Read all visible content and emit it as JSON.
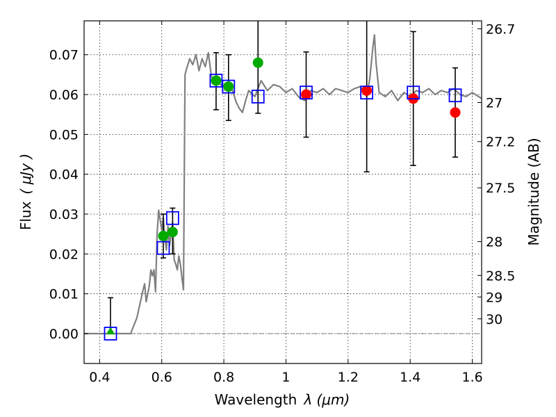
{
  "chart_data": {
    "type": "scatter",
    "xlabel_text": "Wavelength",
    "xlabel_math": "λ (μm)",
    "ylabel_text": "Flux",
    "ylabel_math": "( μJy )",
    "y2label": "Magnitude (AB)",
    "xlim": [
      0.35,
      1.63
    ],
    "ylim": [
      -0.0075,
      0.0785
    ],
    "grid": true,
    "x_ticks": [
      0.4,
      0.6,
      0.8,
      1.0,
      1.2,
      1.4,
      1.6
    ],
    "x_tick_labels": [
      "0.4",
      "0.6",
      "0.8",
      "1",
      "1.2",
      "1.4",
      "1.6"
    ],
    "y_ticks": [
      0.0,
      0.01,
      0.02,
      0.03,
      0.04,
      0.05,
      0.06,
      0.07
    ],
    "y_tick_labels": [
      "0.00",
      "0.01",
      "0.02",
      "0.03",
      "0.04",
      "0.05",
      "0.06",
      "0.07"
    ],
    "y2_ticks": [
      {
        "label": "26.7",
        "flux": 0.0765
      },
      {
        "label": "27",
        "flux": 0.058
      },
      {
        "label": "27.2",
        "flux": 0.0482
      },
      {
        "label": "27.5",
        "flux": 0.0366
      },
      {
        "label": "28",
        "flux": 0.0231
      },
      {
        "label": "28.5",
        "flux": 0.0146
      },
      {
        "label": "29",
        "flux": 0.0092
      },
      {
        "label": "30",
        "flux": 0.0037
      }
    ],
    "zero_line": 0.0,
    "colors": {
      "model": "#808080",
      "green": "#00aa00",
      "red": "#ff0000",
      "box": "#0000ff",
      "error": "#000000"
    },
    "model_spectrum": {
      "x": [
        0.35,
        0.5,
        0.52,
        0.54,
        0.545,
        0.55,
        0.56,
        0.565,
        0.57,
        0.575,
        0.58,
        0.585,
        0.59,
        0.595,
        0.6,
        0.605,
        0.61,
        0.615,
        0.62,
        0.625,
        0.63,
        0.635,
        0.64,
        0.645,
        0.65,
        0.655,
        0.66,
        0.665,
        0.67,
        0.675,
        0.68,
        0.69,
        0.7,
        0.71,
        0.72,
        0.73,
        0.74,
        0.75,
        0.76,
        0.78,
        0.8,
        0.82,
        0.84,
        0.85,
        0.86,
        0.87,
        0.88,
        0.9,
        0.92,
        0.94,
        0.96,
        0.98,
        1.0,
        1.02,
        1.04,
        1.06,
        1.08,
        1.1,
        1.12,
        1.14,
        1.16,
        1.18,
        1.2,
        1.22,
        1.24,
        1.26,
        1.27,
        1.28,
        1.285,
        1.29,
        1.3,
        1.32,
        1.34,
        1.36,
        1.38,
        1.4,
        1.42,
        1.44,
        1.46,
        1.48,
        1.5,
        1.52,
        1.54,
        1.56,
        1.58,
        1.6,
        1.63
      ],
      "y": [
        0.0,
        0.0,
        0.004,
        0.011,
        0.0125,
        0.008,
        0.012,
        0.016,
        0.0145,
        0.016,
        0.0105,
        0.025,
        0.031,
        0.0285,
        0.026,
        0.029,
        0.024,
        0.021,
        0.027,
        0.022,
        0.025,
        0.028,
        0.0185,
        0.0175,
        0.016,
        0.0195,
        0.0175,
        0.014,
        0.011,
        0.065,
        0.0665,
        0.069,
        0.0675,
        0.07,
        0.066,
        0.069,
        0.067,
        0.0705,
        0.0645,
        0.063,
        0.062,
        0.063,
        0.058,
        0.0565,
        0.0555,
        0.0585,
        0.061,
        0.0595,
        0.0635,
        0.061,
        0.0625,
        0.062,
        0.0605,
        0.0615,
        0.0595,
        0.0585,
        0.061,
        0.0605,
        0.0615,
        0.06,
        0.0615,
        0.061,
        0.0605,
        0.0615,
        0.062,
        0.0595,
        0.064,
        0.072,
        0.075,
        0.068,
        0.0605,
        0.0595,
        0.061,
        0.0585,
        0.0605,
        0.0595,
        0.061,
        0.0605,
        0.0615,
        0.06,
        0.061,
        0.0605,
        0.0615,
        0.06,
        0.0595,
        0.0605,
        0.059
      ]
    },
    "box_points": {
      "x": [
        0.435,
        0.605,
        0.635,
        0.775,
        0.815,
        0.91,
        1.065,
        1.26,
        1.41,
        1.545
      ],
      "y": [
        0.0,
        0.0215,
        0.029,
        0.0635,
        0.062,
        0.0595,
        0.0605,
        0.0605,
        0.0605,
        0.0598
      ]
    },
    "green_triangles": {
      "x": [
        0.435
      ],
      "y": [
        0.0005
      ],
      "err": [
        0.0085
      ]
    },
    "green_points": {
      "x": [
        0.605,
        0.635,
        0.775,
        0.815,
        0.91
      ],
      "y": [
        0.0245,
        0.0255,
        0.0635,
        0.062,
        0.068
      ],
      "err_low": [
        0.0055,
        0.0055,
        0.0073,
        0.0085,
        0.0127
      ],
      "err_high": [
        0.0055,
        0.006,
        0.007,
        0.008,
        0.012
      ]
    },
    "red_points": {
      "x": [
        1.065,
        1.26,
        1.41,
        1.545
      ],
      "y": [
        0.06,
        0.061,
        0.059,
        0.0555
      ],
      "err_low": [
        0.0107,
        0.0204,
        0.0168,
        0.0112
      ],
      "err_high": [
        0.0107,
        0.02,
        0.0168,
        0.0112
      ]
    }
  }
}
